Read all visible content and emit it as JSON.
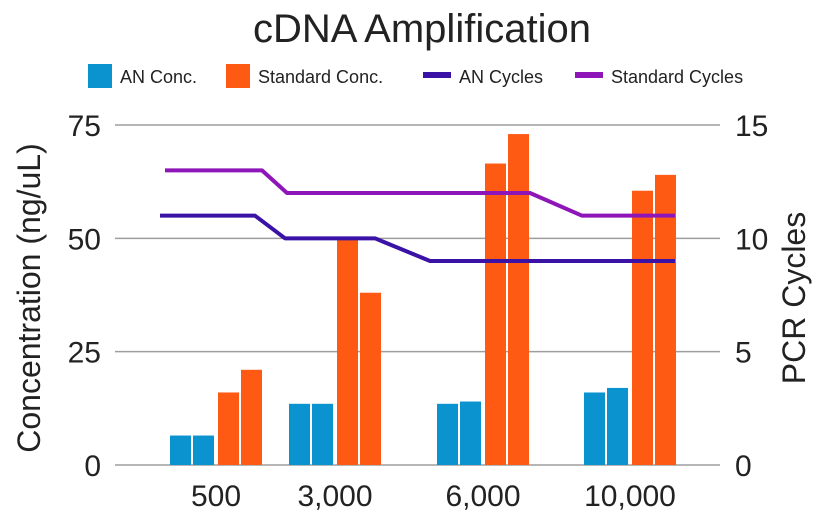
{
  "chart_data": {
    "type": "bar",
    "title": "cDNA Amplification",
    "categories": [
      "500",
      "3,000",
      "6,000",
      "10,000"
    ],
    "bar_series": [
      {
        "name": "AN Conc.",
        "color": "#0b93d0",
        "values": [
          [
            6.5,
            6.5
          ],
          [
            13.5,
            13.5
          ],
          [
            13.5,
            14
          ],
          [
            16,
            17
          ]
        ]
      },
      {
        "name": "Standard Conc.",
        "color": "#ff5a14",
        "values": [
          [
            16,
            21
          ],
          [
            50,
            38
          ],
          [
            66.5,
            73
          ],
          [
            60.5,
            64
          ]
        ]
      }
    ],
    "line_series": [
      {
        "name": "AN Cycles",
        "color": "#3a12a6",
        "x": [
          160,
          255,
          285,
          375,
          430,
          675
        ],
        "y": [
          11,
          11,
          10,
          10,
          9,
          9
        ]
      },
      {
        "name": "Standard Cycles",
        "color": "#8e16b8",
        "x": [
          165,
          262,
          287,
          530,
          582,
          675
        ],
        "y": [
          13,
          13,
          12,
          12,
          11,
          11
        ]
      }
    ],
    "ylabel_left": "Concentration (ng/uL)",
    "ylabel_right": "PCR Cycles",
    "xlabel": "",
    "ylim_left": [
      0,
      75
    ],
    "ylim_right": [
      0,
      15
    ],
    "yticks_left": [
      "0",
      "25",
      "50",
      "75"
    ],
    "yticks_right": [
      "0",
      "5",
      "10",
      "15"
    ],
    "grid": true,
    "legend_position": "top"
  }
}
